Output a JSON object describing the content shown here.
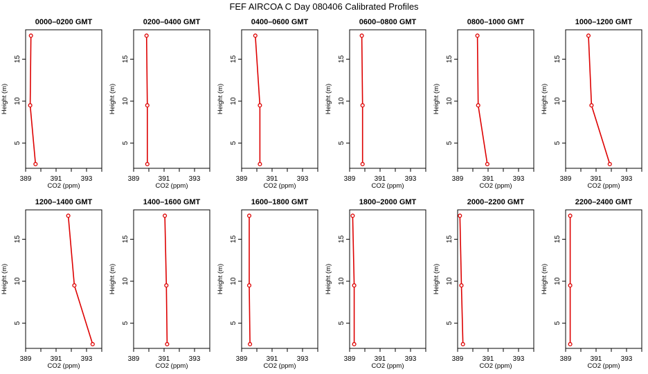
{
  "figure": {
    "title": "FEF AIRCOA C  Day 080406  Calibrated Profiles",
    "colors": {
      "series": "#dd0000",
      "axis": "#000000",
      "background": "#ffffff"
    }
  },
  "chart_data": [
    {
      "type": "line",
      "title": "0000–0200 GMT",
      "xlabel": "CO2 (ppm)",
      "ylabel": "Height (m)",
      "xlim": [
        389,
        394
      ],
      "ylim": [
        2,
        18.5
      ],
      "xticks": [
        "389",
        "391",
        "393"
      ],
      "yticks": [
        "5",
        "10",
        "15"
      ],
      "x": [
        389.35,
        389.3,
        389.65
      ],
      "y": [
        17.8,
        9.5,
        2.5
      ]
    },
    {
      "type": "line",
      "title": "0200–0400 GMT",
      "xlabel": "CO2 (ppm)",
      "ylabel": "Height (m)",
      "xlim": [
        389,
        394
      ],
      "ylim": [
        2,
        18.5
      ],
      "xticks": [
        "389",
        "391",
        "393"
      ],
      "yticks": [
        "5",
        "10",
        "15"
      ],
      "x": [
        389.85,
        389.9,
        389.9
      ],
      "y": [
        17.8,
        9.5,
        2.5
      ]
    },
    {
      "type": "line",
      "title": "0400–0600 GMT",
      "xlabel": "CO2 (ppm)",
      "ylabel": "Height (m)",
      "xlim": [
        389,
        394
      ],
      "ylim": [
        2,
        18.5
      ],
      "xticks": [
        "389",
        "391",
        "393"
      ],
      "yticks": [
        "5",
        "10",
        "15"
      ],
      "x": [
        389.9,
        390.2,
        390.2
      ],
      "y": [
        17.8,
        9.5,
        2.5
      ]
    },
    {
      "type": "line",
      "title": "0600–0800 GMT",
      "xlabel": "CO2 (ppm)",
      "ylabel": "Height (m)",
      "xlim": [
        389,
        394
      ],
      "ylim": [
        2,
        18.5
      ],
      "xticks": [
        "389",
        "391",
        "393"
      ],
      "yticks": [
        "5",
        "10",
        "15"
      ],
      "x": [
        389.8,
        389.85,
        389.85
      ],
      "y": [
        17.8,
        9.5,
        2.5
      ]
    },
    {
      "type": "line",
      "title": "0800–1000 GMT",
      "xlabel": "CO2 (ppm)",
      "ylabel": "Height (m)",
      "xlim": [
        389,
        394
      ],
      "ylim": [
        2,
        18.5
      ],
      "xticks": [
        "389",
        "391",
        "393"
      ],
      "yticks": [
        "5",
        "10",
        "15"
      ],
      "x": [
        390.3,
        390.35,
        390.95
      ],
      "y": [
        17.8,
        9.5,
        2.5
      ]
    },
    {
      "type": "line",
      "title": "1000–1200 GMT",
      "xlabel": "CO2 (ppm)",
      "ylabel": "Height (m)",
      "xlim": [
        389,
        394
      ],
      "ylim": [
        2,
        18.5
      ],
      "xticks": [
        "389",
        "391",
        "393"
      ],
      "yticks": [
        "5",
        "10",
        "15"
      ],
      "x": [
        390.5,
        390.7,
        391.9
      ],
      "y": [
        17.8,
        9.5,
        2.5
      ]
    },
    {
      "type": "line",
      "title": "1200–1400 GMT",
      "xlabel": "CO2 (ppm)",
      "ylabel": "Height (m)",
      "xlim": [
        389,
        394
      ],
      "ylim": [
        2,
        18.5
      ],
      "xticks": [
        "389",
        "391",
        "393"
      ],
      "yticks": [
        "5",
        "10",
        "15"
      ],
      "x": [
        391.8,
        392.2,
        393.4
      ],
      "y": [
        17.8,
        9.5,
        2.5
      ]
    },
    {
      "type": "line",
      "title": "1400–1600 GMT",
      "xlabel": "CO2 (ppm)",
      "ylabel": "Height (m)",
      "xlim": [
        389,
        394
      ],
      "ylim": [
        2,
        18.5
      ],
      "xticks": [
        "389",
        "391",
        "393"
      ],
      "yticks": [
        "5",
        "10",
        "15"
      ],
      "x": [
        391.05,
        391.15,
        391.2
      ],
      "y": [
        17.8,
        9.5,
        2.5
      ]
    },
    {
      "type": "line",
      "title": "1600–1800 GMT",
      "xlabel": "CO2 (ppm)",
      "ylabel": "Height (m)",
      "xlim": [
        389,
        394
      ],
      "ylim": [
        2,
        18.5
      ],
      "xticks": [
        "389",
        "391",
        "393"
      ],
      "yticks": [
        "5",
        "10",
        "15"
      ],
      "x": [
        389.5,
        389.5,
        389.55
      ],
      "y": [
        17.8,
        9.5,
        2.5
      ]
    },
    {
      "type": "line",
      "title": "1800–2000 GMT",
      "xlabel": "CO2 (ppm)",
      "ylabel": "Height (m)",
      "xlim": [
        389,
        394
      ],
      "ylim": [
        2,
        18.5
      ],
      "xticks": [
        "389",
        "391",
        "393"
      ],
      "yticks": [
        "5",
        "10",
        "15"
      ],
      "x": [
        389.2,
        389.3,
        389.3
      ],
      "y": [
        17.8,
        9.5,
        2.5
      ]
    },
    {
      "type": "line",
      "title": "2000–2200 GMT",
      "xlabel": "CO2 (ppm)",
      "ylabel": "Height (m)",
      "xlim": [
        389,
        394
      ],
      "ylim": [
        2,
        18.5
      ],
      "xticks": [
        "389",
        "391",
        "393"
      ],
      "yticks": [
        "5",
        "10",
        "15"
      ],
      "x": [
        389.15,
        389.25,
        389.35
      ],
      "y": [
        17.8,
        9.5,
        2.5
      ]
    },
    {
      "type": "line",
      "title": "2200–2400 GMT",
      "xlabel": "CO2 (ppm)",
      "ylabel": "Height (m)",
      "xlim": [
        389,
        394
      ],
      "ylim": [
        2,
        18.5
      ],
      "xticks": [
        "389",
        "391",
        "393"
      ],
      "yticks": [
        "5",
        "10",
        "15"
      ],
      "x": [
        389.3,
        389.3,
        389.3
      ],
      "y": [
        17.8,
        9.5,
        2.5
      ]
    }
  ]
}
